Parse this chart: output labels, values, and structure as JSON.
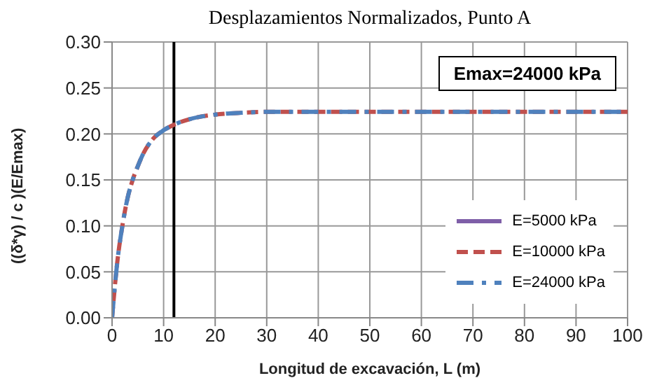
{
  "chart_data": {
    "type": "line",
    "title": "Desplazamientos Normalizados, Punto A",
    "xlabel": "Longitud de excavación, L (m)",
    "ylabel": "((δ*γ) / c )(E/Emax)",
    "annotations": [
      "Emax=24000 kPa"
    ],
    "x": [
      0,
      1,
      2,
      3,
      4,
      5,
      6,
      8,
      10,
      12,
      15,
      20,
      25,
      30,
      40,
      50,
      60,
      70,
      80,
      90,
      100
    ],
    "series": [
      {
        "name": "E=5000 kPa",
        "color": "#7f5fa8",
        "line_style": "solid",
        "values": [
          null,
          null,
          null,
          null,
          null,
          null,
          null,
          null,
          null,
          null,
          null,
          null,
          null,
          null,
          null,
          null,
          null,
          null,
          null,
          null,
          null
        ]
      },
      {
        "name": "E=10000 kPa",
        "color": "#c0504d",
        "line_style": "dashed",
        "values": [
          0,
          0.06,
          0.1,
          0.13,
          0.15,
          0.165,
          0.178,
          0.195,
          0.204,
          0.21,
          0.216,
          0.221,
          0.223,
          0.224,
          0.224,
          0.224,
          0.224,
          0.224,
          0.224,
          0.224,
          0.224
        ]
      },
      {
        "name": "E=24000 kPa",
        "color": "#4f81bd",
        "line_style": "dashdot",
        "values": [
          0,
          0.06,
          0.1,
          0.13,
          0.15,
          0.165,
          0.178,
          0.195,
          0.204,
          0.21,
          0.216,
          0.221,
          0.223,
          0.224,
          0.224,
          0.224,
          0.224,
          0.224,
          0.224,
          0.224,
          0.224
        ]
      }
    ],
    "xlim": [
      0,
      100
    ],
    "xticks": [
      0,
      10,
      20,
      30,
      40,
      50,
      60,
      70,
      80,
      90,
      100
    ],
    "ylim": [
      0,
      0.3
    ],
    "yticks": [
      {
        "value": 0,
        "label": "0.00"
      },
      {
        "value": 0.05,
        "label": "0.05"
      },
      {
        "value": 0.1,
        "label": "0.10"
      },
      {
        "value": 0.15,
        "label": "0.15"
      },
      {
        "value": 0.2,
        "label": "0.20"
      },
      {
        "value": 0.25,
        "label": "0.25"
      },
      {
        "value": 0.3,
        "label": "0.30"
      }
    ],
    "ref_lines": [
      {
        "axis": "x",
        "value": 12,
        "color": "#000000"
      }
    ],
    "grid": true,
    "legend": "bottom right",
    "marker": "none"
  }
}
